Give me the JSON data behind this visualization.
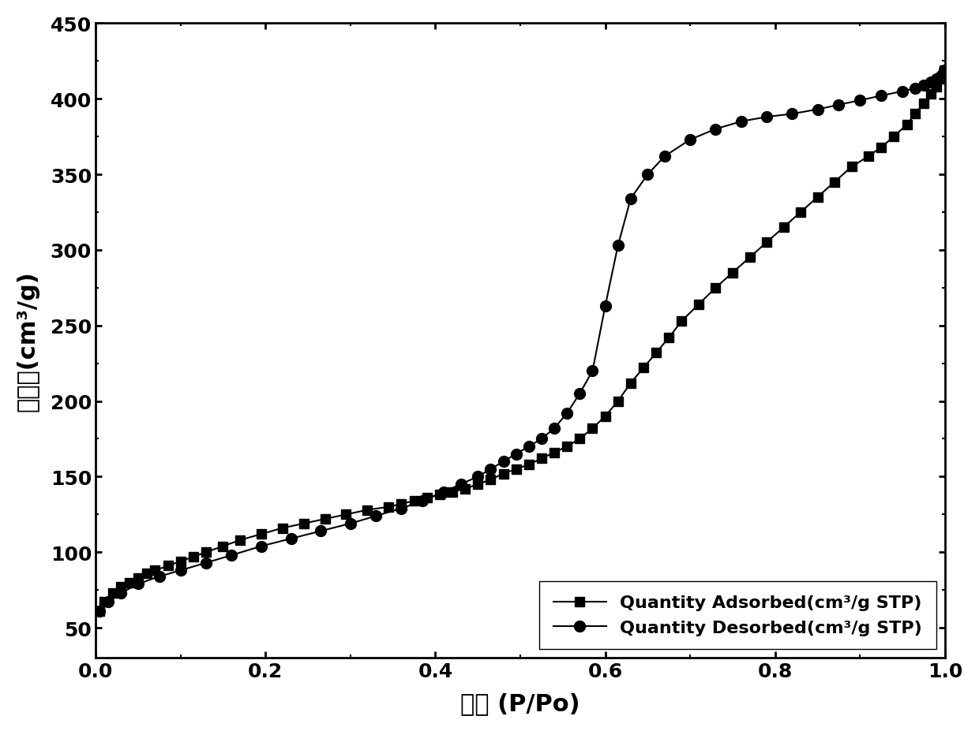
{
  "adsorbed_x": [
    0.005,
    0.01,
    0.02,
    0.03,
    0.04,
    0.05,
    0.06,
    0.07,
    0.085,
    0.1,
    0.115,
    0.13,
    0.15,
    0.17,
    0.195,
    0.22,
    0.245,
    0.27,
    0.295,
    0.32,
    0.345,
    0.36,
    0.375,
    0.39,
    0.405,
    0.42,
    0.435,
    0.45,
    0.465,
    0.48,
    0.495,
    0.51,
    0.525,
    0.54,
    0.555,
    0.57,
    0.585,
    0.6,
    0.615,
    0.63,
    0.645,
    0.66,
    0.675,
    0.69,
    0.71,
    0.73,
    0.75,
    0.77,
    0.79,
    0.81,
    0.83,
    0.85,
    0.87,
    0.89,
    0.91,
    0.925,
    0.94,
    0.955,
    0.965,
    0.975,
    0.983,
    0.99,
    0.995,
    0.999
  ],
  "adsorbed_y": [
    61,
    67,
    73,
    77,
    80,
    83,
    86,
    88,
    91,
    94,
    97,
    100,
    104,
    108,
    112,
    116,
    119,
    122,
    125,
    128,
    130,
    132,
    134,
    136,
    138,
    140,
    142,
    145,
    148,
    152,
    155,
    158,
    162,
    166,
    170,
    175,
    182,
    190,
    200,
    212,
    222,
    232,
    242,
    253,
    264,
    275,
    285,
    295,
    305,
    315,
    325,
    335,
    345,
    355,
    362,
    368,
    375,
    383,
    390,
    397,
    403,
    408,
    413,
    419
  ],
  "desorbed_x": [
    0.005,
    0.015,
    0.03,
    0.05,
    0.075,
    0.1,
    0.13,
    0.16,
    0.195,
    0.23,
    0.265,
    0.3,
    0.33,
    0.36,
    0.385,
    0.41,
    0.43,
    0.45,
    0.465,
    0.48,
    0.495,
    0.51,
    0.525,
    0.54,
    0.555,
    0.57,
    0.585,
    0.6,
    0.615,
    0.63,
    0.65,
    0.67,
    0.7,
    0.73,
    0.76,
    0.79,
    0.82,
    0.85,
    0.875,
    0.9,
    0.925,
    0.95,
    0.965,
    0.975,
    0.983,
    0.99,
    0.995,
    0.999
  ],
  "desorbed_y": [
    61,
    67,
    73,
    79,
    84,
    88,
    93,
    98,
    104,
    109,
    114,
    119,
    124,
    129,
    134,
    140,
    145,
    150,
    155,
    160,
    165,
    170,
    175,
    182,
    192,
    205,
    220,
    263,
    303,
    334,
    350,
    362,
    373,
    380,
    385,
    388,
    390,
    393,
    396,
    399,
    402,
    405,
    407,
    409,
    411,
    413,
    415,
    419
  ],
  "xlabel": "比压 (P/Po)",
  "ylabel": "吸附量(cm³/g)",
  "xlim": [
    0.0,
    1.0
  ],
  "ylim": [
    30,
    450
  ],
  "yticks": [
    50,
    100,
    150,
    200,
    250,
    300,
    350,
    400,
    450
  ],
  "xticks": [
    0.0,
    0.2,
    0.4,
    0.6,
    0.8,
    1.0
  ],
  "legend_adsorbed": "Quantity Adsorbed(cm³/g STP)",
  "legend_desorbed": "Quantity Desorbed(cm³/g STP)",
  "line_color": "#000000",
  "background_color": "#ffffff",
  "marker_size_square": 8,
  "marker_size_circle": 10,
  "linewidth": 1.5
}
